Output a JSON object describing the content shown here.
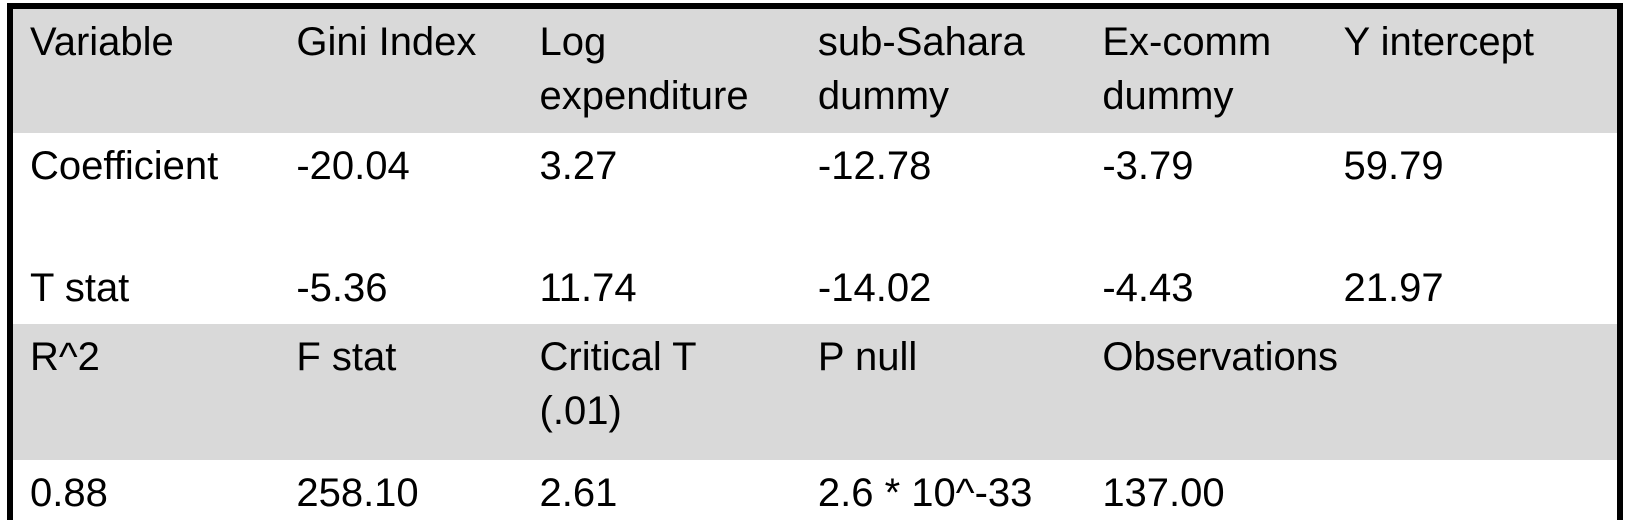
{
  "table": {
    "columns": [
      "Variable",
      "Gini Index",
      "Log expenditure",
      "sub-Sahara dummy",
      "Ex-comm dummy",
      "Y intercept"
    ],
    "coefficient_row": {
      "label": "Coefficient",
      "gini_index": "-20.04",
      "log_expenditure": "3.27",
      "sub_sahara_dummy": "-12.78",
      "ex_comm_dummy": "-3.79",
      "y_intercept": "59.79"
    },
    "t_stat_row": {
      "label": "T stat",
      "gini_index": "-5.36",
      "log_expenditure": "11.74",
      "sub_sahara_dummy": "-14.02",
      "ex_comm_dummy": "-4.43",
      "y_intercept": "21.97"
    },
    "model_stats_header": [
      "R^2",
      "F stat",
      "Critical T (.01)",
      "P null",
      "Observations"
    ],
    "model_stats_values": [
      "0.88",
      "258.10",
      "2.61",
      "2.6 * 10^-33",
      "137.00"
    ],
    "colors": {
      "band_bg": "#d9d9d9",
      "row_bg": "#ffffff",
      "border": "#000000",
      "text": "#000000"
    }
  }
}
